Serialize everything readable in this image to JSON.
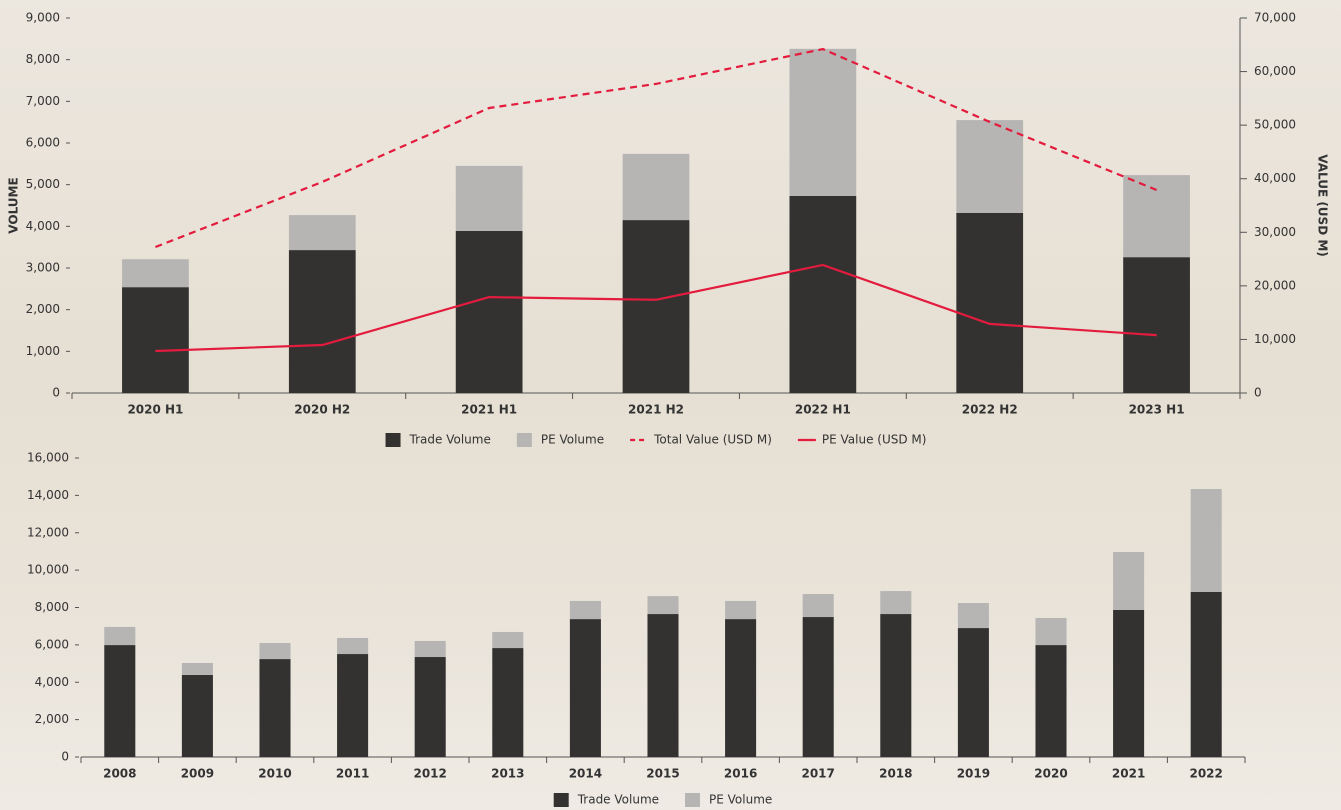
{
  "chart_data": [
    {
      "type": "combo",
      "stacked": true,
      "y_label": "VOLUME",
      "y2_label": "VALUE (USD M)",
      "categories": [
        "2020 H1",
        "2020 H2",
        "2021 H1",
        "2021 H2",
        "2022 H1",
        "2022 H2",
        "2023 H1"
      ],
      "series": [
        {
          "name": "Trade Volume",
          "type": "bar",
          "color": "#333231",
          "values": [
            2540,
            3430,
            3890,
            4150,
            4730,
            4320,
            3260
          ]
        },
        {
          "name": "PE Volume",
          "type": "bar",
          "color": "#b6b5b3",
          "values": [
            670,
            840,
            1560,
            1590,
            3530,
            2230,
            1970
          ]
        },
        {
          "name": "Total Value (USD M)",
          "type": "line",
          "axis": "y2",
          "dash": true,
          "color": "#e31b3d",
          "values": [
            27250,
            39400,
            53200,
            57700,
            64200,
            50600,
            37900
          ]
        },
        {
          "name": "PE Value (USD M)",
          "type": "line",
          "axis": "y2",
          "dash": false,
          "color": "#e31b3d",
          "values": [
            7840,
            8960,
            17900,
            17400,
            23900,
            12900,
            10800
          ]
        }
      ],
      "ylim": [
        0,
        9000
      ],
      "yticks": [
        0,
        {
          "value": 1000,
          "label": "1,000"
        },
        {
          "value": 2000,
          "label": "2,000"
        },
        {
          "value": 3000,
          "label": "3,000"
        },
        {
          "value": 4000,
          "label": "4,000"
        },
        {
          "value": 5000,
          "label": "5,000"
        },
        {
          "value": 6000,
          "label": "6,000"
        },
        {
          "value": 7000,
          "label": "7,000"
        },
        {
          "value": 8000,
          "label": "8,000"
        },
        {
          "value": 9000,
          "label": "9,000"
        }
      ],
      "y2lim": [
        0,
        70000
      ],
      "y2ticks": [
        0,
        {
          "value": 10000,
          "label": "10,000"
        },
        {
          "value": 20000,
          "label": "20,000"
        },
        {
          "value": 30000,
          "label": "30,000"
        },
        {
          "value": 40000,
          "label": "40,000"
        },
        {
          "value": 50000,
          "label": "50,000"
        },
        {
          "value": 60000,
          "label": "60,000"
        },
        {
          "value": 70000,
          "label": "70,000"
        }
      ],
      "legend": "bottom"
    },
    {
      "type": "bar",
      "stacked": true,
      "categories": [
        "2008",
        "2009",
        "2010",
        "2011",
        "2012",
        "2013",
        "2014",
        "2015",
        "2016",
        "2017",
        "2018",
        "2019",
        "2020",
        "2021",
        "2022"
      ],
      "series": [
        {
          "name": "Trade Volume",
          "type": "bar",
          "color": "#333231",
          "values": [
            5990,
            4390,
            5240,
            5510,
            5350,
            5830,
            7380,
            7650,
            7380,
            7490,
            7650,
            6900,
            5990,
            7870,
            8830
          ]
        },
        {
          "name": "PE Volume",
          "type": "bar",
          "color": "#b6b5b3",
          "values": [
            970,
            640,
            860,
            860,
            860,
            860,
            970,
            960,
            970,
            1230,
            1230,
            1340,
            1450,
            3100,
            5510
          ]
        }
      ],
      "ylim": [
        0,
        16000
      ],
      "yticks": [
        0,
        {
          "value": 2000,
          "label": "2,000"
        },
        {
          "value": 4000,
          "label": "4,000"
        },
        {
          "value": 6000,
          "label": "6,000"
        },
        {
          "value": 8000,
          "label": "8,000"
        },
        {
          "value": 10000,
          "label": "10,000"
        },
        {
          "value": 12000,
          "label": "12,000"
        },
        {
          "value": 14000,
          "label": "14,000"
        },
        {
          "value": 16000,
          "label": "16,000"
        }
      ],
      "legend": "bottom"
    }
  ]
}
